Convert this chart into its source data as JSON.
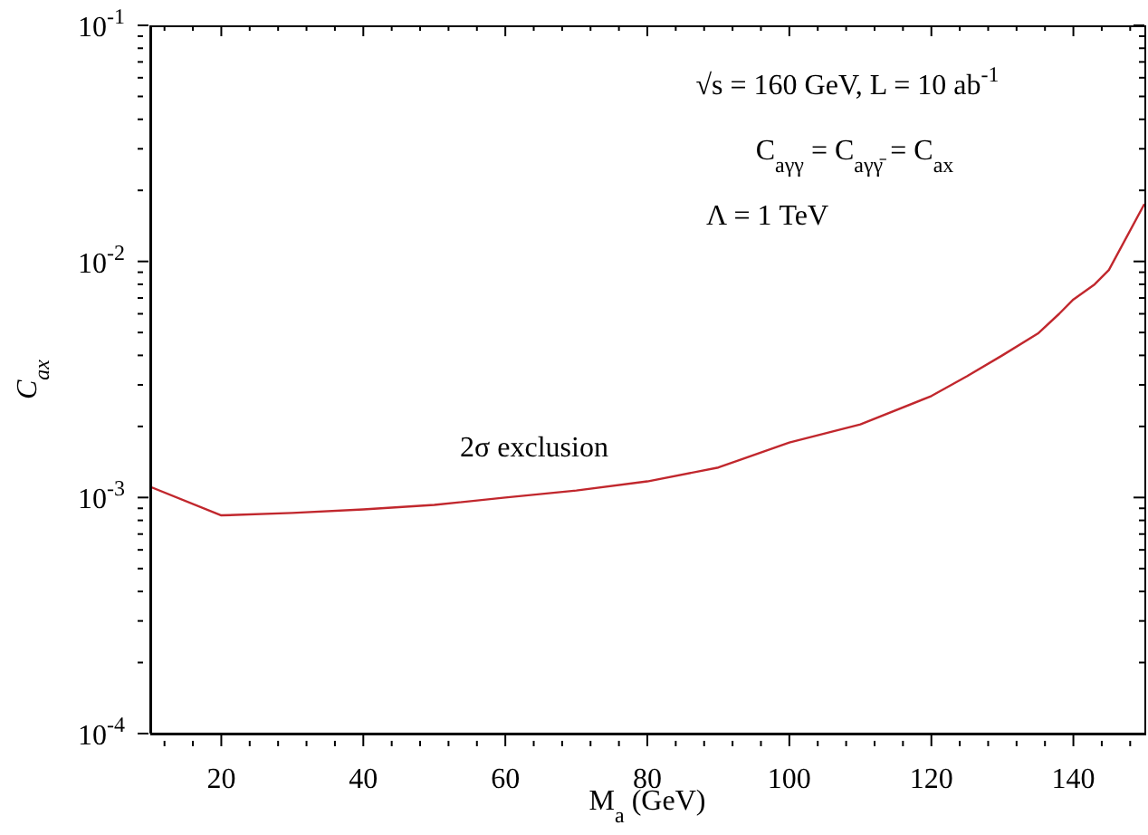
{
  "chart_data": {
    "type": "line",
    "xlabel": "M$_{a}$ (GeV)",
    "ylabel": "C$_{ax}$",
    "log": "y",
    "grid": false,
    "legend": false,
    "marker": "none",
    "line_style": "solid",
    "annotations": [
      "√s = 160  GeV,  L = 10  ab$^{-1}$",
      "C$_{aγγ}$ = C$_{aγγ̄}$ = C$_{ax}$",
      "Λ = 1  TeV",
      "2σ  exclusion"
    ],
    "x": [
      10,
      20,
      30,
      40,
      50,
      60,
      70,
      80,
      90,
      100,
      110,
      120,
      125,
      130,
      135,
      138,
      140,
      143,
      145,
      150
    ],
    "series": [
      {
        "color": "#c1272d",
        "values": [
          0.00111,
          0.00084,
          0.00086,
          0.00089,
          0.00093,
          0.001,
          0.00107,
          0.00117,
          0.00134,
          0.00171,
          0.00204,
          0.00269,
          0.00326,
          0.004,
          0.00495,
          0.006,
          0.0069,
          0.008,
          0.0092,
          0.0175
        ]
      }
    ],
    "xlim": [
      10,
      150
    ],
    "xticks": [
      {
        "value": 12,
        "label": null
      },
      {
        "value": 16,
        "label": null
      },
      20,
      {
        "value": 24,
        "label": null
      },
      {
        "value": 28,
        "label": null
      },
      {
        "value": 32,
        "label": null
      },
      {
        "value": 36,
        "label": null
      },
      40,
      {
        "value": 44,
        "label": null
      },
      {
        "value": 48,
        "label": null
      },
      {
        "value": 52,
        "label": null
      },
      {
        "value": 56,
        "label": null
      },
      60,
      {
        "value": 64,
        "label": null
      },
      {
        "value": 68,
        "label": null
      },
      {
        "value": 72,
        "label": null
      },
      {
        "value": 76,
        "label": null
      },
      80,
      {
        "value": 84,
        "label": null
      },
      {
        "value": 88,
        "label": null
      },
      {
        "value": 92,
        "label": null
      },
      {
        "value": 96,
        "label": null
      },
      100,
      {
        "value": 104,
        "label": null
      },
      {
        "value": 108,
        "label": null
      },
      {
        "value": 112,
        "label": null
      },
      {
        "value": 116,
        "label": null
      },
      120,
      {
        "value": 124,
        "label": null
      },
      {
        "value": 128,
        "label": null
      },
      {
        "value": 132,
        "label": null
      },
      {
        "value": 136,
        "label": null
      },
      140,
      {
        "value": 144,
        "label": null
      },
      {
        "value": 148,
        "label": null
      }
    ],
    "ylim": [
      0.0001,
      0.1
    ],
    "yticks": [
      {
        "value": 0.0001,
        "label": "10$^{-4}$"
      },
      {
        "value": 0.0002,
        "label": null
      },
      {
        "value": 0.0003,
        "label": null
      },
      {
        "value": 0.0004,
        "label": null
      },
      {
        "value": 0.0005,
        "label": null
      },
      {
        "value": 0.0006,
        "label": null
      },
      {
        "value": 0.0007,
        "label": null
      },
      {
        "value": 0.0008,
        "label": null
      },
      {
        "value": 0.0009,
        "label": null
      },
      {
        "value": 0.001,
        "label": "10$^{-3}$"
      },
      {
        "value": 0.002,
        "label": null
      },
      {
        "value": 0.003,
        "label": null
      },
      {
        "value": 0.004,
        "label": null
      },
      {
        "value": 0.005,
        "label": null
      },
      {
        "value": 0.006,
        "label": null
      },
      {
        "value": 0.007,
        "label": null
      },
      {
        "value": 0.008,
        "label": null
      },
      {
        "value": 0.009,
        "label": null
      },
      {
        "value": 0.01,
        "label": "10$^{-2}$"
      },
      {
        "value": 0.02,
        "label": null
      },
      {
        "value": 0.03,
        "label": null
      },
      {
        "value": 0.04,
        "label": null
      },
      {
        "value": 0.05,
        "label": null
      },
      {
        "value": 0.06,
        "label": null
      },
      {
        "value": 0.07,
        "label": null
      },
      {
        "value": 0.08,
        "label": null
      },
      {
        "value": 0.09,
        "label": null
      },
      {
        "value": 0.1,
        "label": "10$^{-1}$"
      }
    ]
  }
}
